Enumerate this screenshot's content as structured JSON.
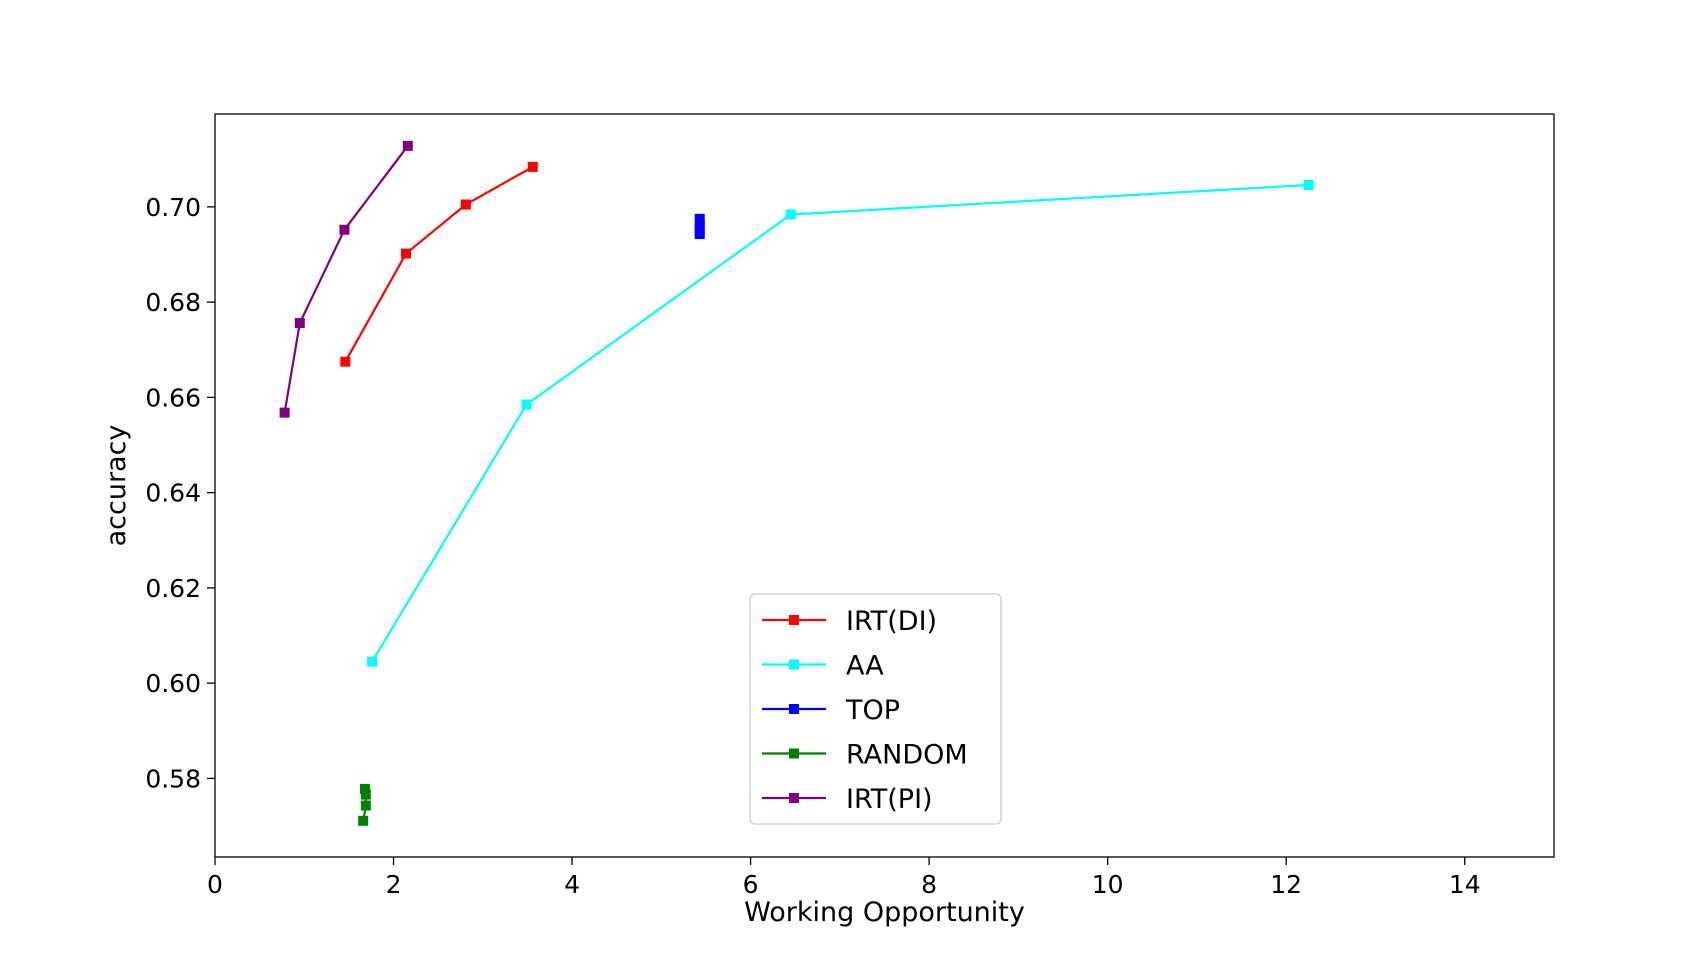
{
  "chart_data": {
    "type": "line",
    "title": "",
    "xlabel": "Working Opportunity",
    "ylabel": "accuracy",
    "xlim": [
      0,
      15
    ],
    "ylim": [
      0.5635,
      0.7195
    ],
    "xticks": [
      0,
      2,
      4,
      6,
      8,
      10,
      12,
      14
    ],
    "yticks": [
      0.58,
      0.6,
      0.62,
      0.64,
      0.66,
      0.68,
      0.7
    ],
    "xtick_labels": [
      "0",
      "2",
      "4",
      "6",
      "8",
      "10",
      "12",
      "14"
    ],
    "ytick_labels": [
      "0.58",
      "0.60",
      "0.62",
      "0.64",
      "0.66",
      "0.68",
      "0.70"
    ],
    "grid": false,
    "legend_position": "lower center",
    "marker": "square",
    "series": [
      {
        "name": "IRT(DI)",
        "color": "#ff0000",
        "points": [
          [
            1.46,
            0.6675
          ],
          [
            2.14,
            0.6902
          ],
          [
            2.81,
            0.7005
          ],
          [
            3.56,
            0.7084
          ]
        ]
      },
      {
        "name": "AA",
        "color": "#00ffff",
        "points": [
          [
            1.76,
            0.6045
          ],
          [
            3.49,
            0.6585
          ],
          [
            6.45,
            0.6984
          ],
          [
            12.25,
            0.7046
          ]
        ]
      },
      {
        "name": "TOP",
        "color": "#0000ff",
        "points": [
          [
            5.43,
            0.6943
          ],
          [
            5.43,
            0.6952
          ],
          [
            5.43,
            0.6963
          ],
          [
            5.43,
            0.6975
          ]
        ]
      },
      {
        "name": "RANDOM",
        "color": "#008000",
        "points": [
          [
            1.66,
            0.5711
          ],
          [
            1.69,
            0.5743
          ],
          [
            1.69,
            0.5766
          ],
          [
            1.68,
            0.5778
          ]
        ]
      },
      {
        "name": "IRT(PI)",
        "color": "#800080",
        "points": [
          [
            0.78,
            0.6568
          ],
          [
            0.95,
            0.6756
          ],
          [
            1.45,
            0.6952
          ],
          [
            2.16,
            0.7128
          ]
        ]
      }
    ]
  }
}
